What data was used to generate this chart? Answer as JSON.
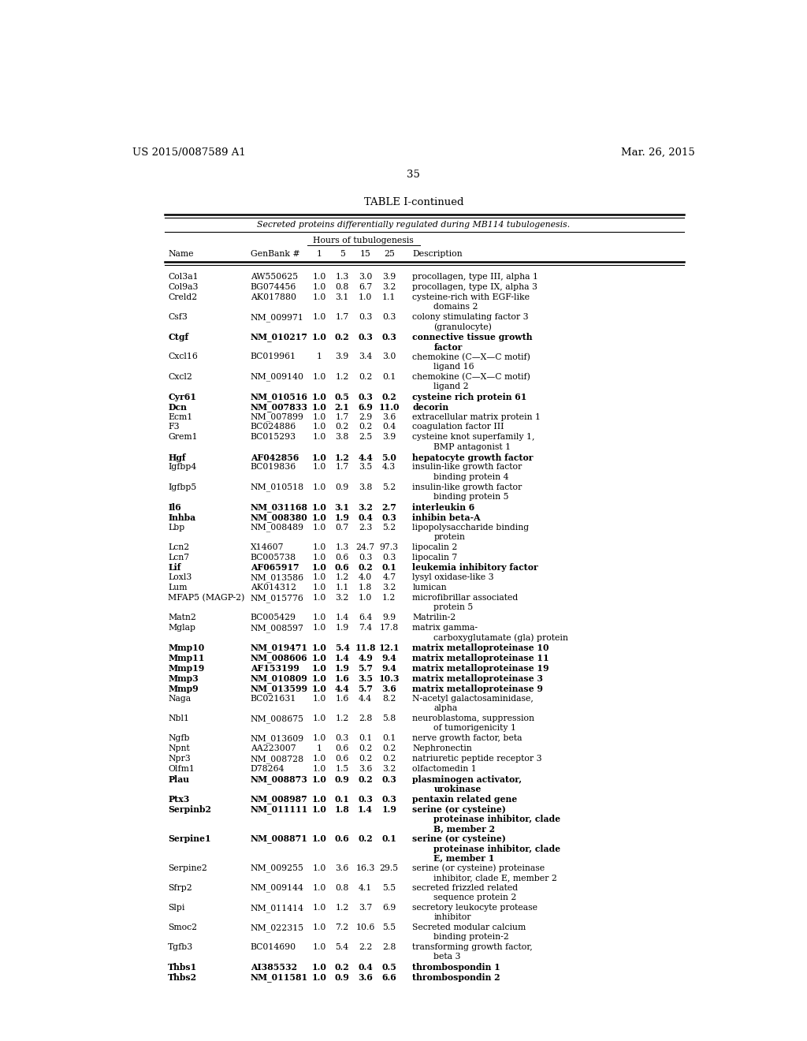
{
  "header_left": "US 2015/0087589 A1",
  "header_right": "Mar. 26, 2015",
  "page_number": "35",
  "table_title": "TABLE I-continued",
  "table_subtitle": "Secreted proteins differentially regulated during MB114 tubulogenesis.",
  "hours_label": "Hours of tubulogenesis",
  "col_headers": [
    "Name",
    "GenBank #",
    "1",
    "5",
    "15",
    "25",
    "Description"
  ],
  "rows": [
    {
      "name": "Col3a1",
      "bold": false,
      "genbank": "AW550625",
      "h1": "1.0",
      "h5": "1.3",
      "h15": "3.0",
      "h25": "3.9",
      "lines": [
        "procollagen, type III, alpha 1"
      ]
    },
    {
      "name": "Col9a3",
      "bold": false,
      "genbank": "BG074456",
      "h1": "1.0",
      "h5": "0.8",
      "h15": "6.7",
      "h25": "3.2",
      "lines": [
        "procollagen, type IX, alpha 3"
      ]
    },
    {
      "name": "Creld2",
      "bold": false,
      "genbank": "AK017880",
      "h1": "1.0",
      "h5": "3.1",
      "h15": "1.0",
      "h25": "1.1",
      "lines": [
        "cysteine-rich with EGF-like",
        "domains 2"
      ]
    },
    {
      "name": "Csf3",
      "bold": false,
      "genbank": "NM_009971",
      "h1": "1.0",
      "h5": "1.7",
      "h15": "0.3",
      "h25": "0.3",
      "lines": [
        "colony stimulating factor 3",
        "(granulocyte)"
      ]
    },
    {
      "name": "Ctgf",
      "bold": true,
      "genbank": "NM_010217",
      "h1": "1.0",
      "h5": "0.2",
      "h15": "0.3",
      "h25": "0.3",
      "lines": [
        "connective tissue growth",
        "factor"
      ]
    },
    {
      "name": "Cxcl16",
      "bold": false,
      "genbank": "BC019961",
      "h1": "1",
      "h5": "3.9",
      "h15": "3.4",
      "h25": "3.0",
      "lines": [
        "chemokine (C—X—C motif)",
        "ligand 16"
      ]
    },
    {
      "name": "Cxcl2",
      "bold": false,
      "genbank": "NM_009140",
      "h1": "1.0",
      "h5": "1.2",
      "h15": "0.2",
      "h25": "0.1",
      "lines": [
        "chemokine (C—X—C motif)",
        "ligand 2"
      ]
    },
    {
      "name": "Cyr61",
      "bold": true,
      "genbank": "NM_010516",
      "h1": "1.0",
      "h5": "0.5",
      "h15": "0.3",
      "h25": "0.2",
      "lines": [
        "cysteine rich protein 61"
      ]
    },
    {
      "name": "Dcn",
      "bold": true,
      "genbank": "NM_007833",
      "h1": "1.0",
      "h5": "2.1",
      "h15": "6.9",
      "h25": "11.0",
      "lines": [
        "decorin"
      ]
    },
    {
      "name": "Ecm1",
      "bold": false,
      "genbank": "NM_007899",
      "h1": "1.0",
      "h5": "1.7",
      "h15": "2.9",
      "h25": "3.6",
      "lines": [
        "extracellular matrix protein 1"
      ]
    },
    {
      "name": "F3",
      "bold": false,
      "genbank": "BC024886",
      "h1": "1.0",
      "h5": "0.2",
      "h15": "0.2",
      "h25": "0.4",
      "lines": [
        "coagulation factor III"
      ]
    },
    {
      "name": "Grem1",
      "bold": false,
      "genbank": "BC015293",
      "h1": "1.0",
      "h5": "3.8",
      "h15": "2.5",
      "h25": "3.9",
      "lines": [
        "cysteine knot superfamily 1,",
        "BMP antagonist 1"
      ]
    },
    {
      "name": "Hgf",
      "bold": true,
      "genbank": "AF042856",
      "h1": "1.0",
      "h5": "1.2",
      "h15": "4.4",
      "h25": "5.0",
      "lines": [
        "hepatocyte growth factor"
      ]
    },
    {
      "name": "Igfbp4",
      "bold": false,
      "genbank": "BC019836",
      "h1": "1.0",
      "h5": "1.7",
      "h15": "3.5",
      "h25": "4.3",
      "lines": [
        "insulin-like growth factor",
        "binding protein 4"
      ]
    },
    {
      "name": "Igfbp5",
      "bold": false,
      "genbank": "NM_010518",
      "h1": "1.0",
      "h5": "0.9",
      "h15": "3.8",
      "h25": "5.2",
      "lines": [
        "insulin-like growth factor",
        "binding protein 5"
      ]
    },
    {
      "name": "Il6",
      "bold": true,
      "genbank": "NM_031168",
      "h1": "1.0",
      "h5": "3.1",
      "h15": "3.2",
      "h25": "2.7",
      "lines": [
        "interleukin 6"
      ]
    },
    {
      "name": "Inhba",
      "bold": true,
      "genbank": "NM_008380",
      "h1": "1.0",
      "h5": "1.9",
      "h15": "0.4",
      "h25": "0.3",
      "lines": [
        "inhibin beta-A"
      ]
    },
    {
      "name": "Lbp",
      "bold": false,
      "genbank": "NM_008489",
      "h1": "1.0",
      "h5": "0.7",
      "h15": "2.3",
      "h25": "5.2",
      "lines": [
        "lipopolysaccharide binding",
        "protein"
      ]
    },
    {
      "name": "Lcn2",
      "bold": false,
      "genbank": "X14607",
      "h1": "1.0",
      "h5": "1.3",
      "h15": "24.7",
      "h25": "97.3",
      "lines": [
        "lipocalin 2"
      ]
    },
    {
      "name": "Lcn7",
      "bold": false,
      "genbank": "BC005738",
      "h1": "1.0",
      "h5": "0.6",
      "h15": "0.3",
      "h25": "0.3",
      "lines": [
        "lipocalin 7"
      ]
    },
    {
      "name": "Lif",
      "bold": true,
      "genbank": "AF065917",
      "h1": "1.0",
      "h5": "0.6",
      "h15": "0.2",
      "h25": "0.1",
      "lines": [
        "leukemia inhibitory factor"
      ]
    },
    {
      "name": "Loxl3",
      "bold": false,
      "genbank": "NM_013586",
      "h1": "1.0",
      "h5": "1.2",
      "h15": "4.0",
      "h25": "4.7",
      "lines": [
        "lysyl oxidase-like 3"
      ]
    },
    {
      "name": "Lum",
      "bold": false,
      "genbank": "AK014312",
      "h1": "1.0",
      "h5": "1.1",
      "h15": "1.8",
      "h25": "3.2",
      "lines": [
        "lumican"
      ]
    },
    {
      "name": "MFAP5 (MAGP-2)",
      "bold": false,
      "genbank": "NM_015776",
      "h1": "1.0",
      "h5": "3.2",
      "h15": "1.0",
      "h25": "1.2",
      "lines": [
        "microfibrillar associated",
        "protein 5"
      ]
    },
    {
      "name": "Matn2",
      "bold": false,
      "genbank": "BC005429",
      "h1": "1.0",
      "h5": "1.4",
      "h15": "6.4",
      "h25": "9.9",
      "lines": [
        "Matrilin-2"
      ]
    },
    {
      "name": "Mglap",
      "bold": false,
      "genbank": "NM_008597",
      "h1": "1.0",
      "h5": "1.9",
      "h15": "7.4",
      "h25": "17.8",
      "lines": [
        "matrix gamma-",
        "carboxyglutamate (gla) protein"
      ]
    },
    {
      "name": "Mmp10",
      "bold": true,
      "genbank": "NM_019471",
      "h1": "1.0",
      "h5": "5.4",
      "h15": "11.8",
      "h25": "12.1",
      "lines": [
        "matrix metalloproteinase 10"
      ]
    },
    {
      "name": "Mmp11",
      "bold": true,
      "genbank": "NM_008606",
      "h1": "1.0",
      "h5": "1.4",
      "h15": "4.9",
      "h25": "9.4",
      "lines": [
        "matrix metalloproteinase 11"
      ]
    },
    {
      "name": "Mmp19",
      "bold": true,
      "genbank": "AF153199",
      "h1": "1.0",
      "h5": "1.9",
      "h15": "5.7",
      "h25": "9.4",
      "lines": [
        "matrix metalloproteinase 19"
      ]
    },
    {
      "name": "Mmp3",
      "bold": true,
      "genbank": "NM_010809",
      "h1": "1.0",
      "h5": "1.6",
      "h15": "3.5",
      "h25": "10.3",
      "lines": [
        "matrix metalloproteinase 3"
      ]
    },
    {
      "name": "Mmp9",
      "bold": true,
      "genbank": "NM_013599",
      "h1": "1.0",
      "h5": "4.4",
      "h15": "5.7",
      "h25": "3.6",
      "lines": [
        "matrix metalloproteinase 9"
      ]
    },
    {
      "name": "Naga",
      "bold": false,
      "genbank": "BC021631",
      "h1": "1.0",
      "h5": "1.6",
      "h15": "4.4",
      "h25": "8.2",
      "lines": [
        "N-acetyl galactosaminidase,",
        "alpha"
      ]
    },
    {
      "name": "Nbl1",
      "bold": false,
      "genbank": "NM_008675",
      "h1": "1.0",
      "h5": "1.2",
      "h15": "2.8",
      "h25": "5.8",
      "lines": [
        "neuroblastoma, suppression",
        "of tumorigenicity 1"
      ]
    },
    {
      "name": "Ngfb",
      "bold": false,
      "genbank": "NM_013609",
      "h1": "1.0",
      "h5": "0.3",
      "h15": "0.1",
      "h25": "0.1",
      "lines": [
        "nerve growth factor, beta"
      ]
    },
    {
      "name": "Npnt",
      "bold": false,
      "genbank": "AA223007",
      "h1": "1",
      "h5": "0.6",
      "h15": "0.2",
      "h25": "0.2",
      "lines": [
        "Nephronectin"
      ]
    },
    {
      "name": "Npr3",
      "bold": false,
      "genbank": "NM_008728",
      "h1": "1.0",
      "h5": "0.6",
      "h15": "0.2",
      "h25": "0.2",
      "lines": [
        "natriuretic peptide receptor 3"
      ]
    },
    {
      "name": "Olfm1",
      "bold": false,
      "genbank": "D78264",
      "h1": "1.0",
      "h5": "1.5",
      "h15": "3.6",
      "h25": "3.2",
      "lines": [
        "olfactomedin 1"
      ]
    },
    {
      "name": "Plau",
      "bold": true,
      "genbank": "NM_008873",
      "h1": "1.0",
      "h5": "0.9",
      "h15": "0.2",
      "h25": "0.3",
      "lines": [
        "plasminogen activator,",
        "urokinase"
      ]
    },
    {
      "name": "Ptx3",
      "bold": true,
      "genbank": "NM_008987",
      "h1": "1.0",
      "h5": "0.1",
      "h15": "0.3",
      "h25": "0.3",
      "lines": [
        "pentaxin related gene"
      ]
    },
    {
      "name": "Serpinb2",
      "bold": true,
      "genbank": "NM_011111",
      "h1": "1.0",
      "h5": "1.8",
      "h15": "1.4",
      "h25": "1.9",
      "lines": [
        "serine (or cysteine)",
        "proteinase inhibitor, clade",
        "B, member 2"
      ]
    },
    {
      "name": "Serpine1",
      "bold": true,
      "genbank": "NM_008871",
      "h1": "1.0",
      "h5": "0.6",
      "h15": "0.2",
      "h25": "0.1",
      "lines": [
        "serine (or cysteine)",
        "proteinase inhibitor, clade",
        "E, member 1"
      ]
    },
    {
      "name": "Serpine2",
      "bold": false,
      "genbank": "NM_009255",
      "h1": "1.0",
      "h5": "3.6",
      "h15": "16.3",
      "h25": "29.5",
      "lines": [
        "serine (or cysteine) proteinase",
        "inhibitor, clade E, member 2"
      ]
    },
    {
      "name": "Sfrp2",
      "bold": false,
      "genbank": "NM_009144",
      "h1": "1.0",
      "h5": "0.8",
      "h15": "4.1",
      "h25": "5.5",
      "lines": [
        "secreted frizzled related",
        "sequence protein 2"
      ]
    },
    {
      "name": "Slpi",
      "bold": false,
      "genbank": "NM_011414",
      "h1": "1.0",
      "h5": "1.2",
      "h15": "3.7",
      "h25": "6.9",
      "lines": [
        "secretory leukocyte protease",
        "inhibitor"
      ]
    },
    {
      "name": "Smoc2",
      "bold": false,
      "genbank": "NM_022315",
      "h1": "1.0",
      "h5": "7.2",
      "h15": "10.6",
      "h25": "5.5",
      "lines": [
        "Secreted modular calcium",
        "binding protein-2"
      ]
    },
    {
      "name": "Tgfb3",
      "bold": false,
      "genbank": "BC014690",
      "h1": "1.0",
      "h5": "5.4",
      "h15": "2.2",
      "h25": "2.8",
      "lines": [
        "transforming growth factor,",
        "beta 3"
      ]
    },
    {
      "name": "Thbs1",
      "bold": true,
      "genbank": "AI385532",
      "h1": "1.0",
      "h5": "0.2",
      "h15": "0.4",
      "h25": "0.5",
      "lines": [
        "thrombospondin 1"
      ]
    },
    {
      "name": "Thbs2",
      "bold": true,
      "genbank": "NM_011581",
      "h1": "1.0",
      "h5": "0.9",
      "h15": "3.6",
      "h25": "6.6",
      "lines": [
        "thrombospondin 2"
      ]
    }
  ]
}
